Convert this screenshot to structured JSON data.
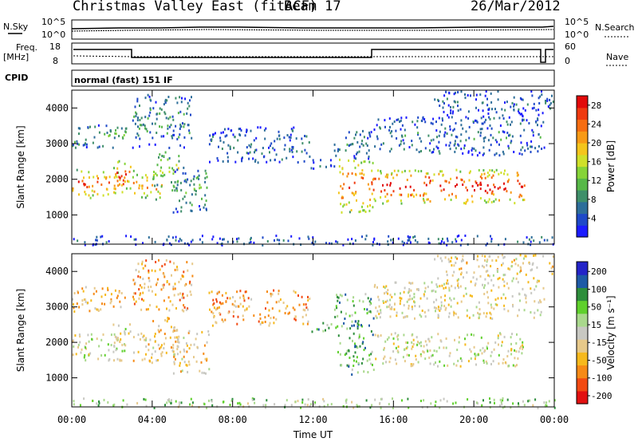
{
  "header": {
    "station": "Christmas Valley East (fitACF)",
    "beam": "Beam 17",
    "date": "26/Mar/2012"
  },
  "strip_labels": {
    "nsky": "N.Sky",
    "nsearch": "N.Search",
    "nsky_ticks": [
      "10^5",
      "10^0"
    ],
    "nsearch_ticks": [
      "10^5",
      "10^0"
    ],
    "freq": "Freq.",
    "freq_unit": "[MHz]",
    "freq_ticks": [
      "18",
      "8"
    ],
    "nave": "Nave",
    "nave_ticks": [
      "60",
      "0"
    ],
    "cpid": "CPID",
    "cpid_name": "normal (fast) 151 IF"
  },
  "colors": {
    "power": [
      "#1b1bff",
      "#1e49c8",
      "#2d6e9a",
      "#3f8f6a",
      "#57b848",
      "#86d438",
      "#cfe02a",
      "#f4c51c",
      "#f89a16",
      "#f66d11",
      "#ef3a10",
      "#e20a0a"
    ],
    "velocity": [
      "#e21010",
      "#f24a12",
      "#f68a16",
      "#f6b91c",
      "#e7c98a",
      "#c8c8c2",
      "#a9d88c",
      "#5fd02c",
      "#2e8e3c",
      "#1e5aa6",
      "#2424c8"
    ]
  },
  "chart_data": [
    {
      "type": "heatmap",
      "name": "power",
      "xlabel": "",
      "ylabel": "Slant Range [km]",
      "x_ticks": [
        "00:00",
        "04:00",
        "08:00",
        "12:00",
        "16:00",
        "20:00",
        "00:00"
      ],
      "y_ticks": [
        1000,
        2000,
        3000,
        4000
      ],
      "xlim_hours": [
        0,
        24
      ],
      "ylim_km": [
        180,
        4500
      ],
      "colorbar": {
        "label": "Power [dB]",
        "ticks": [
          4,
          8,
          12,
          16,
          20,
          24,
          28
        ],
        "range": [
          0,
          30
        ]
      },
      "scatter_regions": [
        {
          "t0": 0.0,
          "t1": 2.6,
          "r0": 1500,
          "r1": 2350,
          "level": 0.72
        },
        {
          "t0": 2.0,
          "t1": 2.9,
          "r0": 1750,
          "r1": 2550,
          "level": 0.8
        },
        {
          "t0": 0.0,
          "t1": 2.7,
          "r0": 2900,
          "r1": 3600,
          "level": 0.3
        },
        {
          "t0": 3.0,
          "t1": 4.5,
          "r0": 1450,
          "r1": 2300,
          "level": 0.65
        },
        {
          "t0": 4.0,
          "t1": 5.3,
          "r0": 1700,
          "r1": 2800,
          "level": 0.45
        },
        {
          "t0": 5.0,
          "t1": 6.8,
          "r0": 1100,
          "r1": 2400,
          "level": 0.3
        },
        {
          "t0": 3.0,
          "t1": 6.0,
          "r0": 2900,
          "r1": 4400,
          "level": 0.25
        },
        {
          "t0": 6.8,
          "t1": 11.8,
          "r0": 2500,
          "r1": 3500,
          "level": 0.18
        },
        {
          "t0": 11.8,
          "t1": 13.2,
          "r0": 2300,
          "r1": 2600,
          "level": 0.2
        },
        {
          "t0": 13.2,
          "t1": 15.0,
          "r0": 1100,
          "r1": 2600,
          "level": 0.78
        },
        {
          "t0": 13.0,
          "t1": 15.0,
          "r0": 2600,
          "r1": 3400,
          "level": 0.22
        },
        {
          "t0": 15.0,
          "t1": 22.5,
          "r0": 1350,
          "r1": 2300,
          "level": 0.85
        },
        {
          "t0": 15.0,
          "t1": 23.5,
          "r0": 2700,
          "r1": 3800,
          "level": 0.2
        },
        {
          "t0": 18.0,
          "t1": 24.0,
          "r0": 3800,
          "r1": 4500,
          "level": 0.15
        },
        {
          "t0": 0.0,
          "t1": 24.0,
          "r0": 180,
          "r1": 450,
          "level": 0.15
        }
      ]
    },
    {
      "type": "heatmap",
      "name": "velocity",
      "xlabel": "Time UT",
      "ylabel": "Slant Range [km]",
      "x_ticks": [
        "00:00",
        "04:00",
        "08:00",
        "12:00",
        "16:00",
        "20:00",
        "00:00"
      ],
      "y_ticks": [
        1000,
        2000,
        3000,
        4000
      ],
      "xlim_hours": [
        0,
        24
      ],
      "ylim_km": [
        180,
        4500
      ],
      "colorbar": {
        "label": "Velocity [m s⁻¹]",
        "ticks": [
          200,
          100,
          50,
          15,
          -15,
          -50,
          -100,
          -200
        ]
      },
      "scatter_regions": [
        {
          "t0": 0.0,
          "t1": 2.6,
          "r0": 1500,
          "r1": 2350,
          "level": 0.5
        },
        {
          "t0": 2.0,
          "t1": 2.9,
          "r0": 1750,
          "r1": 2550,
          "level": 0.5
        },
        {
          "t0": 0.0,
          "t1": 2.7,
          "r0": 2900,
          "r1": 3600,
          "level": 0.35
        },
        {
          "t0": 3.0,
          "t1": 4.5,
          "r0": 1450,
          "r1": 2300,
          "level": 0.4
        },
        {
          "t0": 4.0,
          "t1": 5.3,
          "r0": 1700,
          "r1": 2800,
          "level": 0.35
        },
        {
          "t0": 5.0,
          "t1": 6.8,
          "r0": 1100,
          "r1": 2400,
          "level": 0.4
        },
        {
          "t0": 3.0,
          "t1": 6.0,
          "r0": 2900,
          "r1": 4400,
          "level": 0.3
        },
        {
          "t0": 6.8,
          "t1": 11.8,
          "r0": 2500,
          "r1": 3500,
          "level": 0.3
        },
        {
          "t0": 11.8,
          "t1": 13.2,
          "r0": 2300,
          "r1": 2600,
          "level": 0.65
        },
        {
          "t0": 13.2,
          "t1": 15.0,
          "r0": 1100,
          "r1": 2600,
          "level": 0.7
        },
        {
          "t0": 13.0,
          "t1": 15.0,
          "r0": 2600,
          "r1": 3400,
          "level": 0.7
        },
        {
          "t0": 15.0,
          "t1": 22.5,
          "r0": 1350,
          "r1": 2300,
          "level": 0.5
        },
        {
          "t0": 15.0,
          "t1": 23.5,
          "r0": 2700,
          "r1": 3800,
          "level": 0.45
        },
        {
          "t0": 18.0,
          "t1": 24.0,
          "r0": 3800,
          "r1": 4500,
          "level": 0.4
        },
        {
          "t0": 0.0,
          "t1": 24.0,
          "r0": 180,
          "r1": 450,
          "level": 0.6
        }
      ]
    }
  ]
}
